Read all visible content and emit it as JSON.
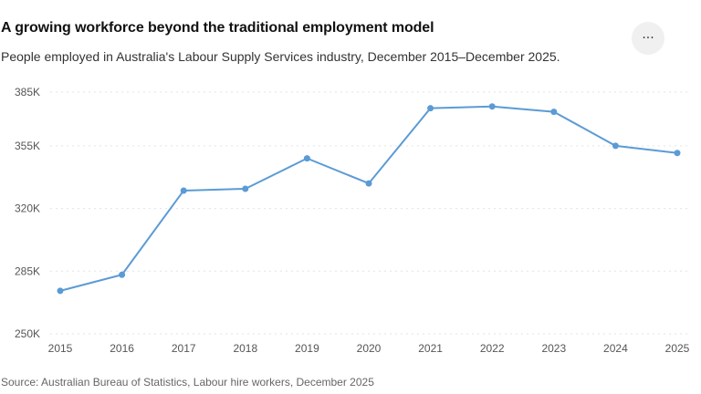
{
  "header": {
    "title": "A growing workforce beyond the traditional employment model",
    "subtitle": "People employed in Australia's Labour Supply Services industry, December 2015–December 2025.",
    "menu_icon_glyph": "···"
  },
  "footer": {
    "source": "Source: Australian Bureau of Statistics, Labour hire workers, December 2025"
  },
  "colors": {
    "line": "#5b9bd5",
    "grid": "#e3e3e3",
    "menu_bg": "#f0f0f0"
  },
  "chart_data": {
    "type": "line",
    "x": [
      "2015",
      "2016",
      "2017",
      "2018",
      "2019",
      "2020",
      "2021",
      "2022",
      "2023",
      "2024",
      "2025"
    ],
    "series": [
      {
        "values": [
          274000,
          283000,
          330000,
          331000,
          348000,
          334000,
          376000,
          377000,
          374000,
          355000,
          351000
        ]
      }
    ],
    "ylim": [
      250000,
      385000
    ],
    "yticks": [
      250000,
      285000,
      320000,
      355000,
      385000
    ],
    "ytick_labels": [
      "250K",
      "285K",
      "320K",
      "355K",
      "385K"
    ],
    "grid": "horizontal dotted",
    "markers": true
  }
}
